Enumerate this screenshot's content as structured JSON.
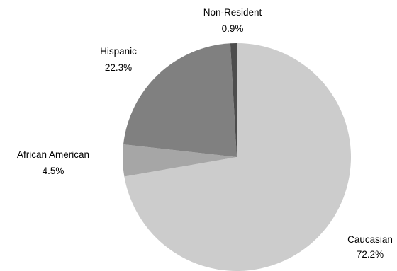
{
  "chart_data": {
    "type": "pie",
    "title": "",
    "slices": [
      {
        "label": "Caucasian",
        "value": 72.2,
        "value_label": "72.2%",
        "color": "#cccccc"
      },
      {
        "label": "African American",
        "value": 4.5,
        "value_label": "4.5%",
        "color": "#a6a6a6"
      },
      {
        "label": "Hispanic",
        "value": 22.3,
        "value_label": "22.3%",
        "color": "#808080"
      },
      {
        "label": "Non-Resident",
        "value": 0.9,
        "value_label": "0.9%",
        "color": "#4d4d4d"
      }
    ]
  }
}
